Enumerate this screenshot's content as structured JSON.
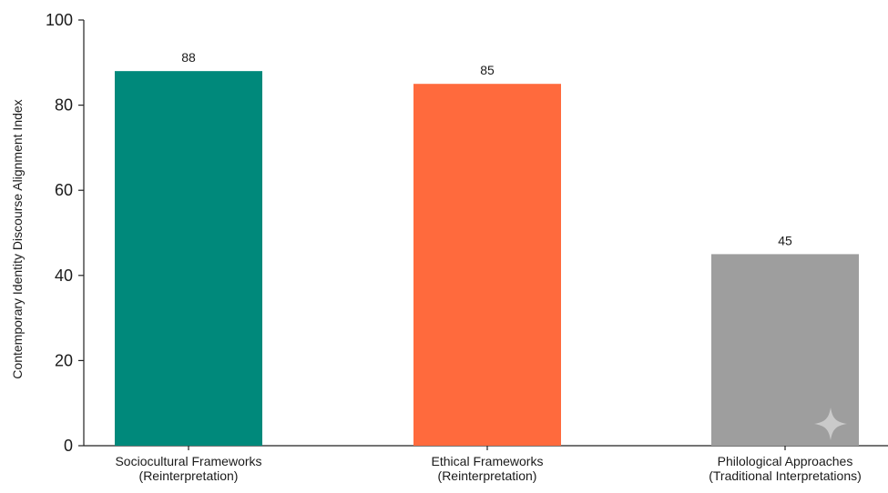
{
  "chart_data": {
    "type": "bar",
    "title": "",
    "xlabel": "",
    "ylabel": "Contemporary Identity Discourse Alignment Index",
    "ylim": [
      0,
      100
    ],
    "yticks": [
      0,
      20,
      40,
      60,
      80,
      100
    ],
    "grid": false,
    "legend": "none",
    "categories": [
      [
        "Sociocultural Frameworks",
        "(Reinterpretation)"
      ],
      [
        "Ethical Frameworks",
        "(Reinterpretation)"
      ],
      [
        "Philological Approaches",
        "(Traditional Interpretations)"
      ]
    ],
    "values": [
      88,
      85,
      45
    ],
    "colors": [
      "#00897b",
      "#ff6a3d",
      "#9e9e9e"
    ],
    "data_labels": [
      "88",
      "85",
      "45"
    ]
  }
}
